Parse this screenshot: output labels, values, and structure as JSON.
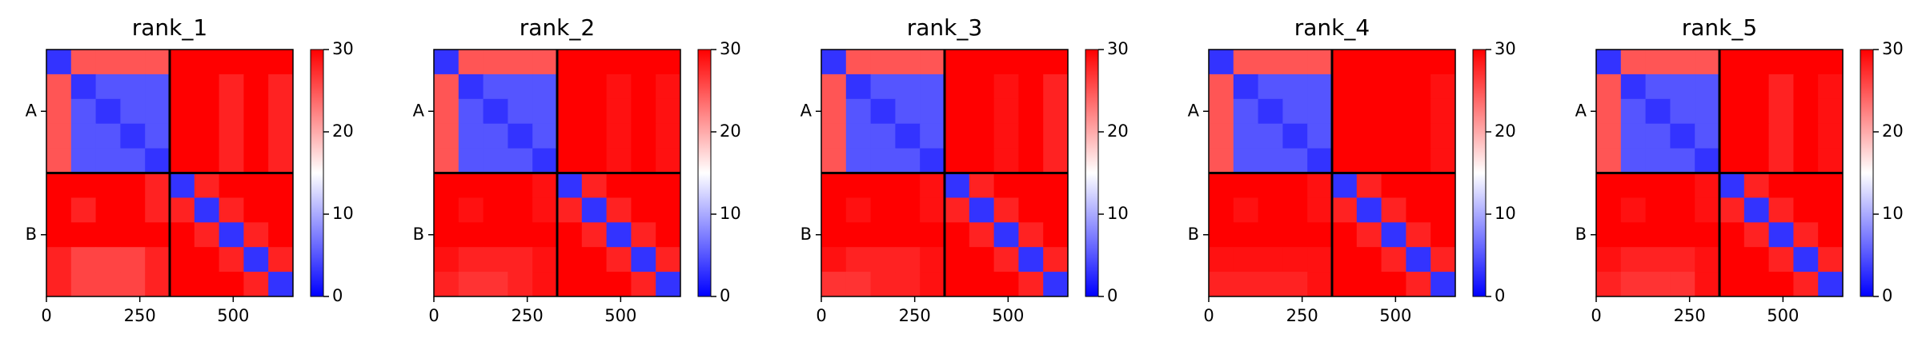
{
  "chart_data": [
    {
      "type": "heatmap",
      "title": "rank_1",
      "xlim": [
        0,
        660
      ],
      "xticks": [
        0,
        250,
        500
      ],
      "ylim": [
        660,
        0
      ],
      "yticks": [
        {
          "value": 165,
          "label": "A"
        },
        {
          "value": 495,
          "label": "B"
        }
      ],
      "chain_breaks": [
        330
      ],
      "cmap": [
        "#0000ff",
        "#ffffff",
        "#ff0000"
      ],
      "clim": [
        0,
        30
      ],
      "cticks": [
        0,
        10,
        20,
        30
      ],
      "values": [
        [
          3,
          25,
          25,
          25,
          25,
          30,
          30,
          30,
          30,
          30
        ],
        [
          25,
          3,
          5,
          5,
          5,
          30,
          30,
          28,
          30,
          28
        ],
        [
          25,
          5,
          3,
          5,
          5,
          30,
          30,
          28,
          30,
          28
        ],
        [
          25,
          5,
          5,
          3,
          5,
          30,
          30,
          28,
          30,
          28
        ],
        [
          25,
          5,
          5,
          5,
          3,
          30,
          30,
          28,
          30,
          28
        ],
        [
          30,
          30,
          30,
          30,
          28,
          3,
          28,
          30,
          30,
          30
        ],
        [
          30,
          28,
          30,
          30,
          28,
          28,
          3,
          28,
          30,
          30
        ],
        [
          30,
          30,
          30,
          30,
          30,
          30,
          28,
          3,
          28,
          30
        ],
        [
          28,
          26,
          26,
          26,
          28,
          30,
          30,
          28,
          3,
          28
        ],
        [
          28,
          26,
          26,
          26,
          28,
          30,
          30,
          30,
          28,
          3
        ]
      ]
    },
    {
      "type": "heatmap",
      "title": "rank_2",
      "xlim": [
        0,
        660
      ],
      "xticks": [
        0,
        250,
        500
      ],
      "ylim": [
        660,
        0
      ],
      "yticks": [
        {
          "value": 165,
          "label": "A"
        },
        {
          "value": 495,
          "label": "B"
        }
      ],
      "chain_breaks": [
        330
      ],
      "cmap": [
        "#0000ff",
        "#ffffff",
        "#ff0000"
      ],
      "clim": [
        0,
        30
      ],
      "cticks": [
        0,
        10,
        20,
        30
      ],
      "values": [
        [
          3,
          25,
          25,
          25,
          25,
          30,
          30,
          30,
          30,
          30
        ],
        [
          25,
          3,
          5,
          5,
          5,
          30,
          30,
          29,
          30,
          29
        ],
        [
          25,
          5,
          3,
          5,
          5,
          30,
          30,
          29,
          30,
          29
        ],
        [
          25,
          5,
          5,
          3,
          5,
          30,
          30,
          29,
          30,
          29
        ],
        [
          25,
          5,
          5,
          5,
          3,
          30,
          30,
          29,
          30,
          29
        ],
        [
          30,
          30,
          30,
          30,
          29,
          3,
          28,
          30,
          30,
          30
        ],
        [
          30,
          29,
          30,
          30,
          29,
          28,
          3,
          28,
          30,
          30
        ],
        [
          30,
          30,
          30,
          30,
          30,
          30,
          28,
          3,
          28,
          30
        ],
        [
          29,
          28,
          28,
          28,
          29,
          30,
          30,
          28,
          3,
          28
        ],
        [
          28,
          27,
          27,
          28,
          29,
          30,
          30,
          30,
          28,
          3
        ]
      ]
    },
    {
      "type": "heatmap",
      "title": "rank_3",
      "xlim": [
        0,
        660
      ],
      "xticks": [
        0,
        250,
        500
      ],
      "ylim": [
        660,
        0
      ],
      "yticks": [
        {
          "value": 165,
          "label": "A"
        },
        {
          "value": 495,
          "label": "B"
        }
      ],
      "chain_breaks": [
        330
      ],
      "cmap": [
        "#0000ff",
        "#ffffff",
        "#ff0000"
      ],
      "clim": [
        0,
        30
      ],
      "cticks": [
        0,
        10,
        20,
        30
      ],
      "values": [
        [
          3,
          25,
          25,
          25,
          25,
          30,
          30,
          30,
          30,
          30
        ],
        [
          25,
          3,
          5,
          5,
          5,
          30,
          30,
          29,
          30,
          28
        ],
        [
          25,
          5,
          3,
          5,
          5,
          30,
          30,
          29,
          30,
          28
        ],
        [
          25,
          5,
          5,
          3,
          5,
          30,
          30,
          29,
          30,
          28
        ],
        [
          25,
          5,
          5,
          5,
          3,
          30,
          30,
          29,
          30,
          28
        ],
        [
          30,
          30,
          30,
          30,
          29,
          3,
          28,
          30,
          30,
          30
        ],
        [
          30,
          29,
          30,
          30,
          29,
          28,
          3,
          28,
          30,
          30
        ],
        [
          30,
          30,
          30,
          30,
          30,
          30,
          28,
          3,
          28,
          30
        ],
        [
          29,
          28,
          28,
          28,
          29,
          30,
          30,
          28,
          3,
          28
        ],
        [
          27,
          27,
          28,
          28,
          29,
          30,
          30,
          30,
          28,
          3
        ]
      ]
    },
    {
      "type": "heatmap",
      "title": "rank_4",
      "xlim": [
        0,
        660
      ],
      "xticks": [
        0,
        250,
        500
      ],
      "ylim": [
        660,
        0
      ],
      "yticks": [
        {
          "value": 165,
          "label": "A"
        },
        {
          "value": 495,
          "label": "B"
        }
      ],
      "chain_breaks": [
        330
      ],
      "cmap": [
        "#0000ff",
        "#ffffff",
        "#ff0000"
      ],
      "clim": [
        0,
        30
      ],
      "cticks": [
        0,
        10,
        20,
        30
      ],
      "values": [
        [
          3,
          25,
          25,
          25,
          25,
          30,
          30,
          30,
          30,
          30
        ],
        [
          25,
          3,
          5,
          5,
          5,
          30,
          30,
          30,
          30,
          29
        ],
        [
          25,
          5,
          3,
          5,
          5,
          30,
          30,
          30,
          30,
          29
        ],
        [
          25,
          5,
          5,
          3,
          5,
          30,
          30,
          30,
          30,
          29
        ],
        [
          25,
          5,
          5,
          5,
          3,
          30,
          30,
          30,
          30,
          29
        ],
        [
          30,
          30,
          30,
          30,
          29,
          3,
          28,
          30,
          30,
          30
        ],
        [
          30,
          29,
          30,
          30,
          29,
          28,
          3,
          28,
          30,
          30
        ],
        [
          30,
          30,
          30,
          30,
          30,
          30,
          28,
          3,
          28,
          30
        ],
        [
          29,
          29,
          29,
          29,
          29,
          30,
          30,
          28,
          3,
          28
        ],
        [
          28,
          28,
          28,
          28,
          29,
          30,
          30,
          30,
          28,
          3
        ]
      ]
    },
    {
      "type": "heatmap",
      "title": "rank_5",
      "xlim": [
        0,
        660
      ],
      "xticks": [
        0,
        250,
        500
      ],
      "ylim": [
        660,
        0
      ],
      "yticks": [
        {
          "value": 165,
          "label": "A"
        },
        {
          "value": 495,
          "label": "B"
        }
      ],
      "chain_breaks": [
        330
      ],
      "cmap": [
        "#0000ff",
        "#ffffff",
        "#ff0000"
      ],
      "clim": [
        0,
        30
      ],
      "cticks": [
        0,
        10,
        20,
        30
      ],
      "values": [
        [
          3,
          25,
          25,
          25,
          25,
          30,
          30,
          30,
          30,
          30
        ],
        [
          25,
          3,
          5,
          5,
          5,
          30,
          30,
          28,
          30,
          29
        ],
        [
          25,
          5,
          3,
          5,
          5,
          30,
          30,
          28,
          30,
          29
        ],
        [
          25,
          5,
          5,
          3,
          5,
          30,
          30,
          28,
          30,
          29
        ],
        [
          25,
          5,
          5,
          5,
          3,
          30,
          30,
          28,
          30,
          29
        ],
        [
          30,
          30,
          30,
          30,
          29,
          3,
          28,
          30,
          30,
          30
        ],
        [
          30,
          29,
          30,
          30,
          29,
          28,
          3,
          28,
          30,
          30
        ],
        [
          30,
          30,
          30,
          30,
          30,
          30,
          28,
          3,
          28,
          30
        ],
        [
          29,
          28,
          28,
          28,
          29,
          30,
          30,
          28,
          3,
          28
        ],
        [
          28,
          27,
          27,
          27,
          29,
          30,
          30,
          30,
          28,
          3
        ]
      ]
    }
  ]
}
